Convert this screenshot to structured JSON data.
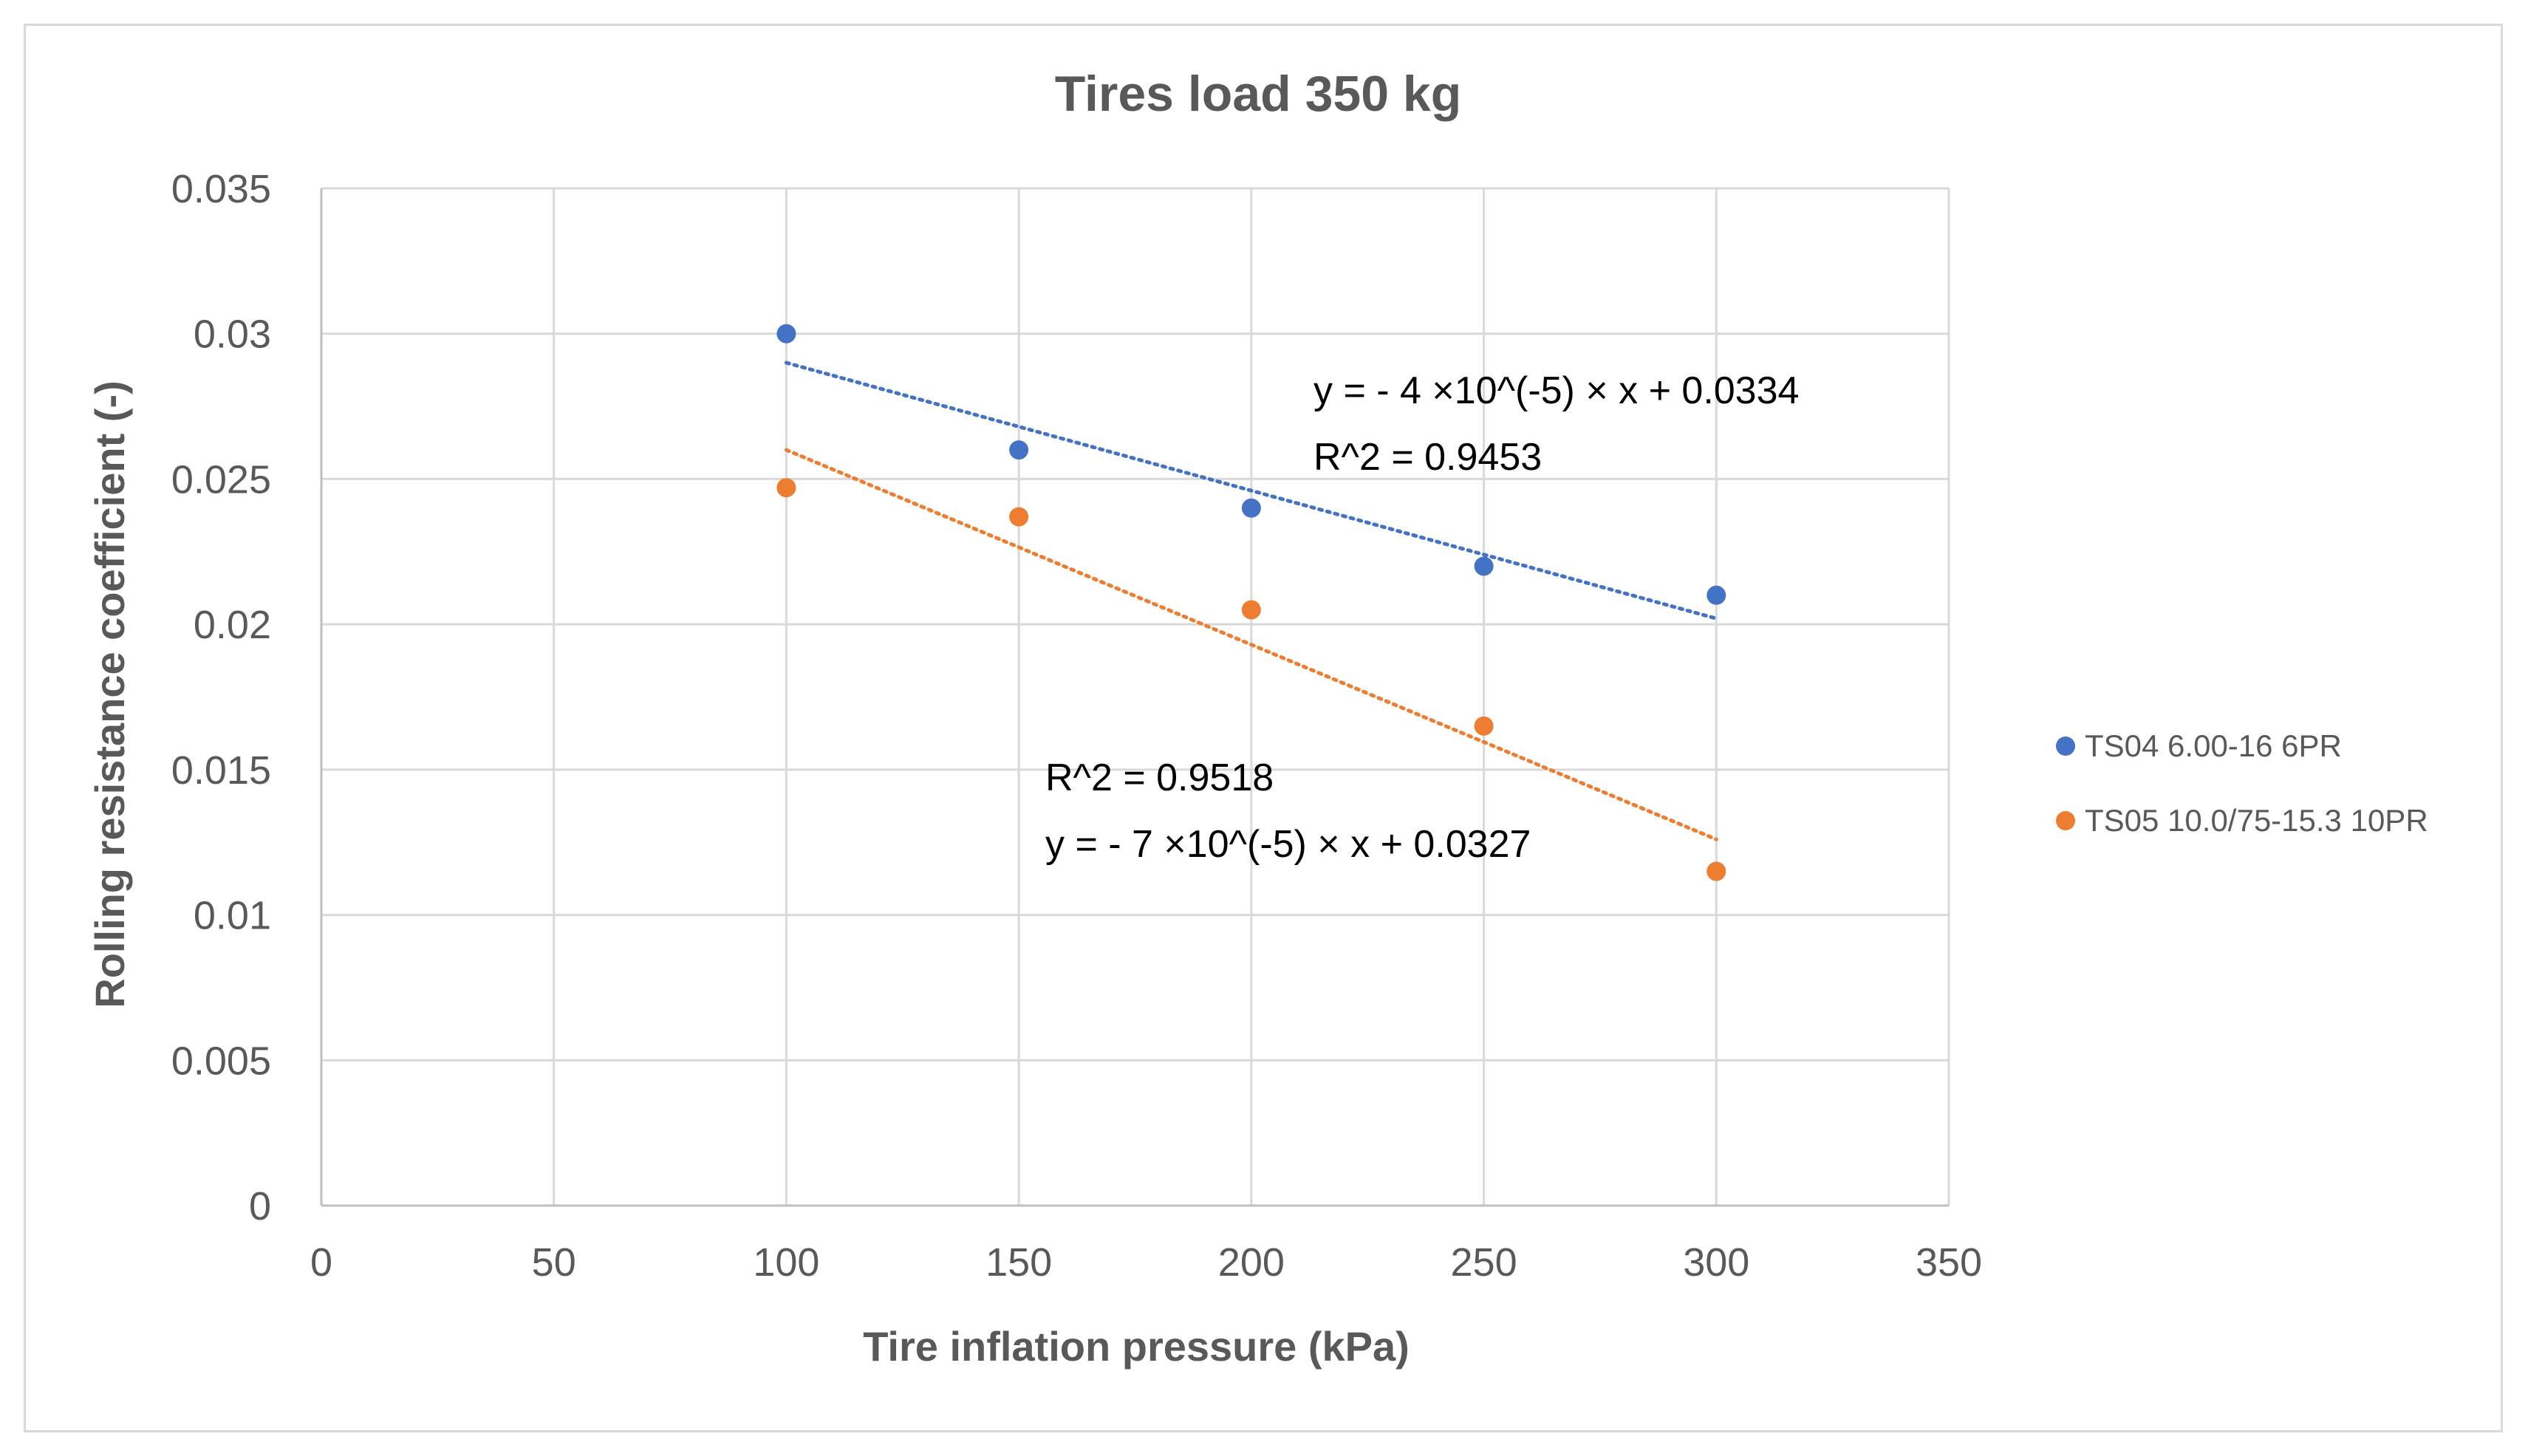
{
  "chart_data": {
    "type": "scatter",
    "title": "Tires load 350 kg",
    "xlabel": "Tire inflation pressure (kPa)",
    "ylabel": "Rolling resistance coefficient (-)",
    "xlim": [
      0,
      350
    ],
    "ylim": [
      0,
      0.035
    ],
    "x_ticks": [
      0,
      50,
      100,
      150,
      200,
      250,
      300,
      350
    ],
    "y_ticks": [
      0,
      0.005,
      0.01,
      0.015,
      0.02,
      0.025,
      0.03,
      0.035
    ],
    "x_tick_labels": [
      "0",
      "50",
      "100",
      "150",
      "200",
      "250",
      "300",
      "350"
    ],
    "y_tick_labels": [
      "0",
      "0.005",
      "0.01",
      "0.015",
      "0.02",
      "0.025",
      "0.03",
      "0.035"
    ],
    "grid": true,
    "legend_position": "right",
    "series": [
      {
        "name": "TS04 6.00-16 6PR",
        "color": "#4472c4",
        "x": [
          100,
          150,
          200,
          250,
          300
        ],
        "y": [
          0.03,
          0.026,
          0.024,
          0.022,
          0.021
        ],
        "trendline": {
          "slope": -4.4e-05,
          "intercept": 0.0334,
          "x_range": [
            100,
            300
          ]
        },
        "equation": "y = - 4 ×10^(-5) × x + 0.0334",
        "r2": "R^2 = 0.9453"
      },
      {
        "name": "TS05 10.0/75-15.3 10PR",
        "color": "#ed7d31",
        "x": [
          100,
          150,
          200,
          250,
          300
        ],
        "y": [
          0.0247,
          0.0237,
          0.0205,
          0.0165,
          0.0115
        ],
        "trendline": {
          "slope": -6.7e-05,
          "intercept": 0.0327,
          "x_range": [
            100,
            300
          ]
        },
        "equation": "y = - 7 ×10^(-5) × x + 0.0327",
        "r2": "R^2 = 0.9518"
      }
    ]
  }
}
